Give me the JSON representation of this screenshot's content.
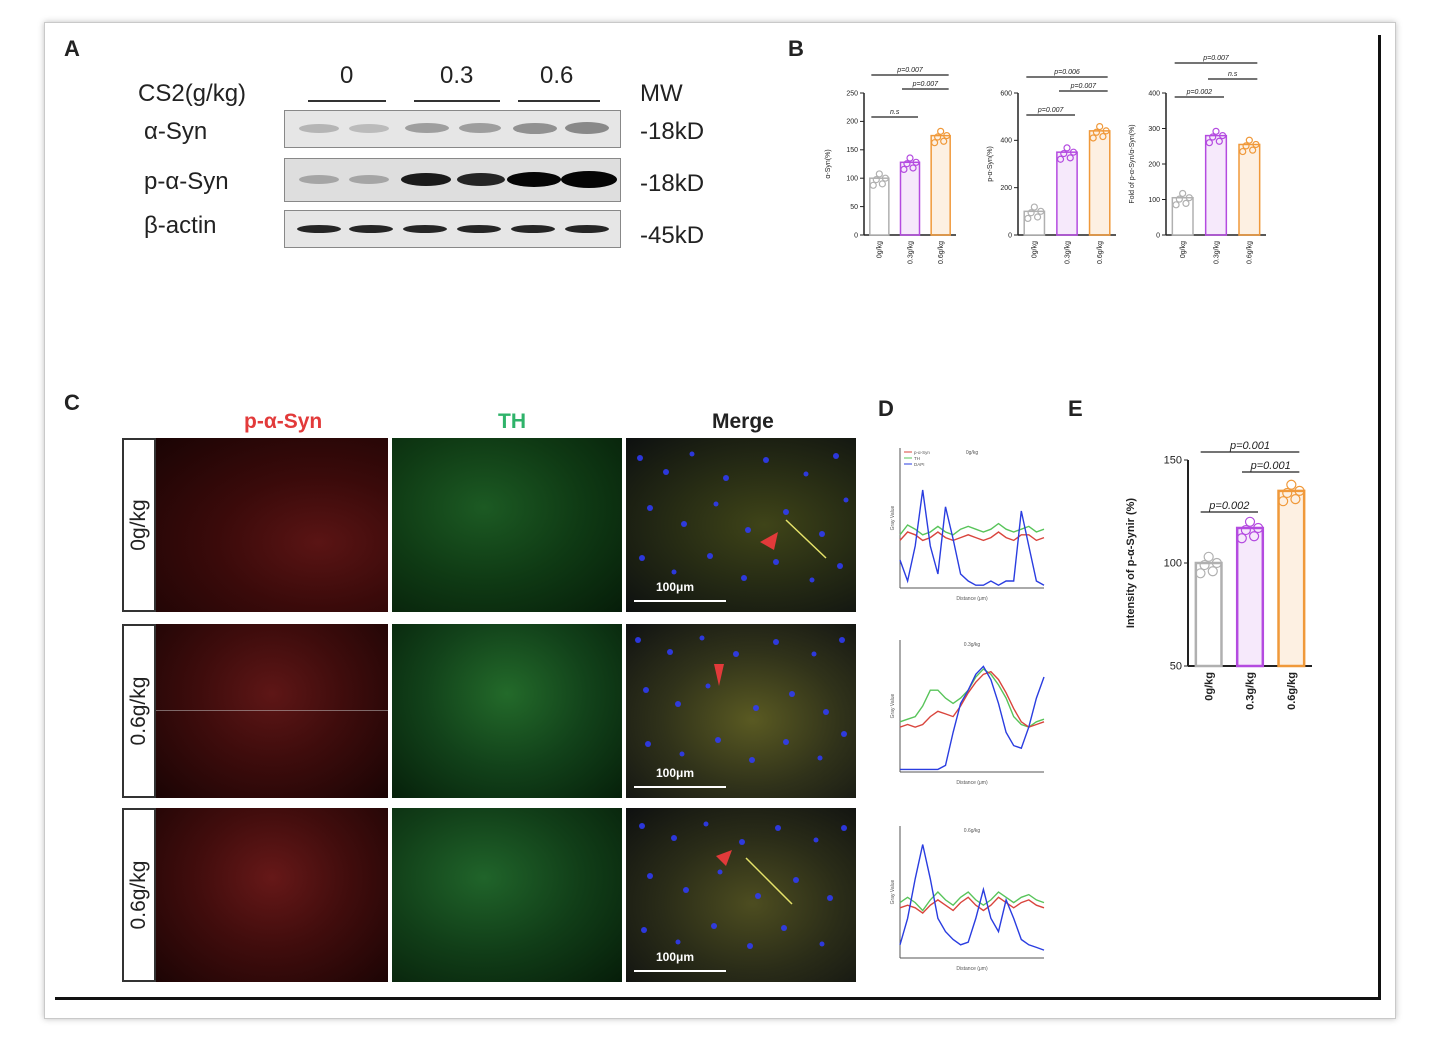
{
  "panels": {
    "a": "A",
    "b": "B",
    "c": "C",
    "d": "D",
    "e": "E"
  },
  "western": {
    "header_label": "CS2(g/kg)",
    "doses": [
      "0",
      "0.3",
      "0.6"
    ],
    "mw_label": "MW",
    "rows": [
      {
        "name": "α-Syn",
        "mw": "-18kD"
      },
      {
        "name": "p-α-Syn",
        "mw": "-18kD"
      },
      {
        "name": "β-actin",
        "mw": "-45kD"
      }
    ]
  },
  "micrographs": {
    "channels": [
      "p-α-Syn",
      "TH",
      "Merge"
    ],
    "rows": [
      "0g/kg",
      "0.6g/kg",
      "0.6g/kg"
    ],
    "scale_bar": "100μm"
  },
  "colors": {
    "red_channel": "#e23a3a",
    "green_channel": "#2fb36a",
    "control": "#b0b0b0",
    "mid": "#b44be0",
    "high": "#f0993a",
    "line_red": "#d9453d",
    "line_green": "#58c45a",
    "line_blue": "#2a3de0"
  },
  "chart_data": [
    {
      "type": "bar",
      "panel": "B",
      "ylabel": "α-Syn(%)",
      "ylim": [
        0,
        250
      ],
      "yticks": [
        "0",
        "50",
        "100",
        "150",
        "200",
        "250"
      ],
      "categories": [
        "0g/kg",
        "0.3g/kg",
        "0.6g/kg"
      ],
      "values": [
        100,
        128,
        175
      ],
      "comparisons": [
        "p=0.007",
        "p=0.007",
        "n.s"
      ]
    },
    {
      "type": "bar",
      "panel": "B",
      "ylabel": "p-α-Syn(%)",
      "ylim": [
        0,
        600
      ],
      "yticks": [
        "0",
        "200",
        "400",
        "600"
      ],
      "categories": [
        "0g/kg",
        "0.3g/kg",
        "0.6g/kg"
      ],
      "values": [
        100,
        350,
        440
      ],
      "comparisons": [
        "p=0.006",
        "p=0.007",
        "p=0.007"
      ]
    },
    {
      "type": "bar",
      "panel": "B",
      "ylabel": "Fold of p-α-Syn/α-Syn(%)",
      "ylim": [
        0,
        400
      ],
      "yticks": [
        "0",
        "100",
        "200",
        "300",
        "400"
      ],
      "categories": [
        "0g/kg",
        "0.3g/kg",
        "0.6g/kg"
      ],
      "values": [
        105,
        280,
        255
      ],
      "comparisons": [
        "p=0.007",
        "n.s",
        "p=0.002"
      ]
    },
    {
      "type": "line",
      "panel": "D",
      "title": "0g/kg",
      "legend": [
        "p-α-Syn",
        "TH",
        "DAPI"
      ],
      "xlabel": "Distance (μm)",
      "ylabel": "Gray Value"
    },
    {
      "type": "line",
      "panel": "D",
      "title": "0.3g/kg",
      "xlabel": "Distance (μm)",
      "ylabel": "Gray Value"
    },
    {
      "type": "line",
      "panel": "D",
      "title": "0.6g/kg",
      "xlabel": "Distance (μm)",
      "ylabel": "Gray Value"
    },
    {
      "type": "bar",
      "panel": "E",
      "ylabel": "Intensity of p-α-Synir (%)",
      "ylim": [
        50,
        150
      ],
      "yticks": [
        "50",
        "100",
        "150"
      ],
      "categories": [
        "0g/kg",
        "0.3g/kg",
        "0.6g/kg"
      ],
      "values": [
        100,
        117,
        135
      ],
      "comparisons": [
        "p=0.001",
        "p=0.001",
        "p=0.002"
      ]
    }
  ]
}
